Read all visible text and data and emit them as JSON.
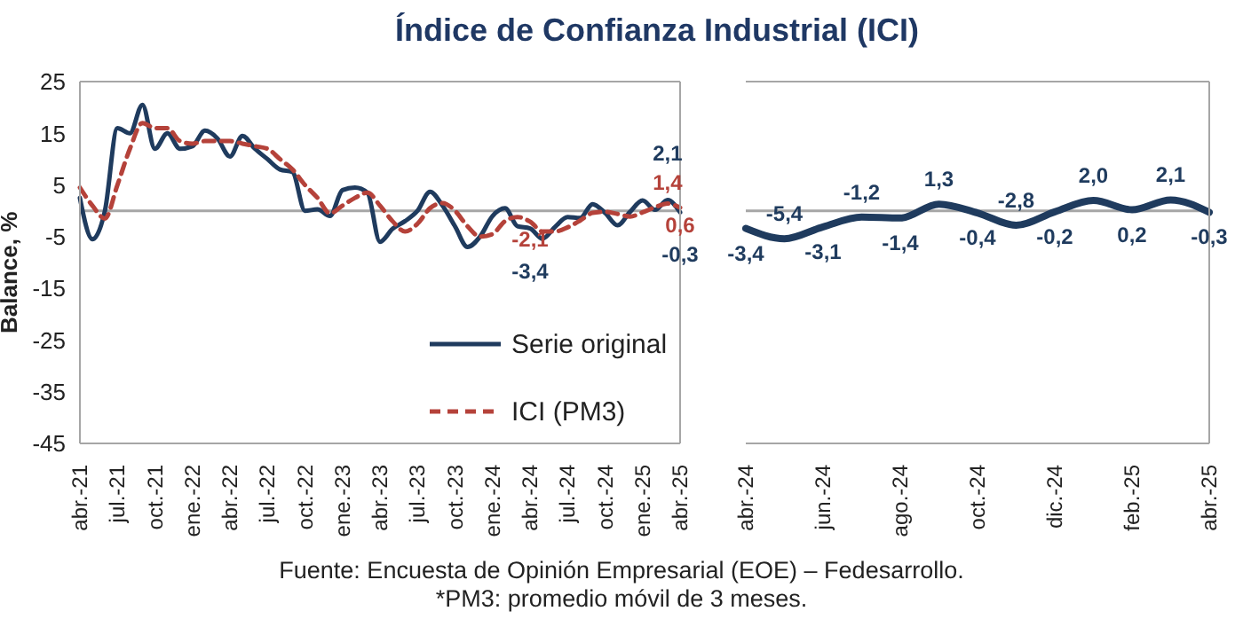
{
  "chart_data": [
    {
      "type": "line",
      "title": "Índice de Confianza Industrial (ICI)",
      "ylabel": "Balance, %",
      "annotations": [
        "Fuente: Encuesta de Opinión Empresarial (EOE) – Fedesarrollo.",
        "*PM3: promedio móvil de 3 meses."
      ],
      "categories": [
        "abr.-21",
        null,
        null,
        "jul.-21",
        null,
        null,
        "oct.-21",
        null,
        null,
        "ene.-22",
        null,
        null,
        "abr.-22",
        null,
        null,
        "jul.-22",
        null,
        null,
        "oct.-22",
        null,
        null,
        "ene.-23",
        null,
        null,
        "abr.-23",
        null,
        null,
        "jul.-23",
        null,
        null,
        "oct.-23",
        null,
        null,
        "ene.-24",
        null,
        null,
        "abr.-24",
        null,
        null,
        "jul.-24",
        null,
        null,
        "oct.-24",
        null,
        null,
        "ene.-25",
        null,
        null,
        "abr.-25"
      ],
      "series": [
        {
          "name": "Serie original",
          "color": "#1f3b5e",
          "line_style": "solid",
          "values": [
            2.5,
            -5.5,
            0,
            16,
            15,
            20.5,
            12,
            15,
            12,
            12.5,
            15.5,
            14,
            10.5,
            14.5,
            12,
            10,
            8,
            7.5,
            0,
            0.3,
            -1,
            4,
            4.5,
            3.5,
            -6,
            -3.5,
            -2,
            0,
            3.7,
            1,
            -3,
            -7,
            -5,
            -1,
            0.5,
            -3,
            -3.4,
            -5.4,
            -3.1,
            -1.2,
            -1.4,
            1.3,
            -0.4,
            -2.8,
            -0.2,
            2.0,
            0.2,
            2.1,
            -0.3
          ],
          "value_labels": [
            null,
            null,
            null,
            null,
            null,
            null,
            null,
            null,
            null,
            null,
            null,
            null,
            null,
            null,
            null,
            null,
            null,
            null,
            null,
            null,
            null,
            null,
            null,
            null,
            null,
            null,
            null,
            null,
            null,
            null,
            null,
            null,
            null,
            null,
            null,
            null,
            "-3,4",
            null,
            null,
            null,
            null,
            null,
            null,
            null,
            null,
            null,
            null,
            "2,1",
            "-0,3"
          ]
        },
        {
          "name": "ICI (PM3)",
          "color": "#b5423a",
          "line_style": "dashed",
          "values": [
            4.5,
            1,
            -1.5,
            5,
            12,
            17,
            16,
            16,
            13.5,
            13,
            13.5,
            13.5,
            13.5,
            13,
            12.5,
            12,
            10,
            8,
            5,
            2.5,
            -0.5,
            1,
            2.5,
            3.5,
            1,
            -2,
            -4,
            -2.5,
            0.5,
            1.5,
            0,
            -3,
            -5,
            -4.5,
            -2,
            -1.2,
            -2.1,
            -4,
            -4,
            -3.2,
            -1.9,
            -0.4,
            -0.2,
            -0.6,
            -1.1,
            -0.3,
            0.7,
            1.4,
            0.6
          ],
          "value_labels": [
            null,
            null,
            null,
            null,
            null,
            null,
            null,
            null,
            null,
            null,
            null,
            null,
            null,
            null,
            null,
            null,
            null,
            null,
            null,
            null,
            null,
            null,
            null,
            null,
            null,
            null,
            null,
            null,
            null,
            null,
            null,
            null,
            null,
            null,
            null,
            null,
            "-2,1",
            null,
            null,
            null,
            null,
            null,
            null,
            null,
            null,
            null,
            null,
            "1,4",
            "0,6"
          ]
        }
      ],
      "ylim": [
        -45,
        25
      ],
      "yticks": [
        -45,
        -35,
        -25,
        -15,
        -5,
        5,
        15,
        25
      ],
      "ref_lines": [
        {
          "axis": "y",
          "value": 0,
          "color": "#a6a6a6"
        }
      ],
      "legend": "bottom right",
      "grid": false
    },
    {
      "type": "line",
      "categories": [
        "abr.-24",
        null,
        "jun.-24",
        null,
        "ago.-24",
        null,
        "oct.-24",
        null,
        "dic.-24",
        null,
        "feb.-25",
        null,
        "abr.-25"
      ],
      "series": [
        {
          "color": "#1f3b5e",
          "line_style": "solid",
          "values": [
            -3.4,
            -5.4,
            -3.1,
            -1.2,
            -1.4,
            1.3,
            -0.4,
            -2.8,
            -0.2,
            2.0,
            0.2,
            2.1,
            -0.3
          ],
          "value_labels": [
            "-3,4",
            "-5,4",
            "-3,1",
            "-1,2",
            "-1,4",
            "1,3",
            "-0,4",
            "-2,8",
            "-0,2",
            "2,0",
            "0,2",
            "2,1",
            "-0,3"
          ]
        }
      ],
      "ylim": [
        -45,
        25
      ],
      "tick_labels": "x",
      "ref_lines": [
        {
          "axis": "y",
          "value": 0,
          "color": "#a6a6a6"
        }
      ],
      "grid": false
    }
  ]
}
